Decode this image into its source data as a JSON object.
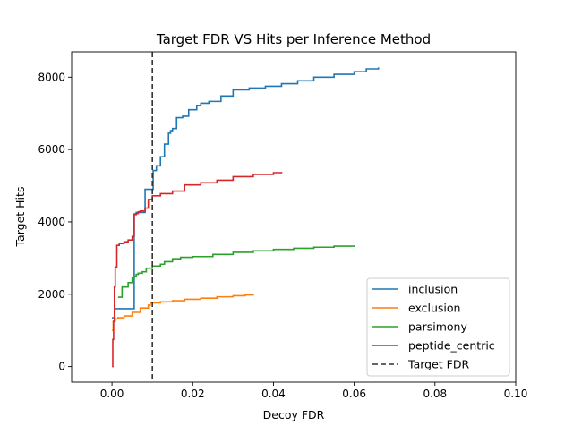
{
  "chart_data": {
    "type": "line",
    "title": "Target FDR VS Hits per Inference Method",
    "xlabel": "Decoy FDR",
    "ylabel": "Target Hits",
    "xlim": [
      -0.01,
      0.1
    ],
    "ylim": [
      -430,
      8700
    ],
    "xticks": [
      0.0,
      0.02,
      0.04,
      0.06,
      0.08,
      0.1
    ],
    "xtick_labels": [
      "0.00",
      "0.02",
      "0.04",
      "0.06",
      "0.08",
      "0.10"
    ],
    "yticks": [
      0,
      2000,
      4000,
      6000,
      8000
    ],
    "ytick_labels": [
      "0",
      "2000",
      "4000",
      "6000",
      "8000"
    ],
    "grid": false,
    "legend_position": "lower-right",
    "series": [
      {
        "name": "inclusion",
        "color": "#1f77b4",
        "step": true,
        "x": [
          0.0,
          0.0007,
          0.0007,
          0.0055,
          0.0055,
          0.006,
          0.006,
          0.0082,
          0.0082,
          0.0102,
          0.0102,
          0.011,
          0.012,
          0.013,
          0.014,
          0.0145,
          0.015,
          0.016,
          0.0175,
          0.019,
          0.021,
          0.022,
          0.024,
          0.027,
          0.03,
          0.034,
          0.038,
          0.042,
          0.046,
          0.05,
          0.055,
          0.06,
          0.063,
          0.066
        ],
        "y": [
          1350,
          1350,
          1600,
          1600,
          4220,
          4220,
          4260,
          4260,
          4900,
          4900,
          5420,
          5550,
          5800,
          6150,
          6450,
          6520,
          6580,
          6880,
          6920,
          7100,
          7220,
          7280,
          7330,
          7480,
          7650,
          7700,
          7750,
          7820,
          7900,
          8000,
          8080,
          8150,
          8230,
          8270
        ]
      },
      {
        "name": "exclusion",
        "color": "#ff7f0e",
        "step": true,
        "x": [
          0.0,
          0.0003,
          0.0008,
          0.0015,
          0.003,
          0.005,
          0.007,
          0.009,
          0.0095,
          0.012,
          0.015,
          0.018,
          0.022,
          0.026,
          0.03,
          0.033,
          0.035
        ],
        "y": [
          1000,
          1250,
          1320,
          1350,
          1400,
          1500,
          1620,
          1700,
          1760,
          1790,
          1820,
          1860,
          1890,
          1930,
          1960,
          1980,
          2000
        ]
      },
      {
        "name": "parsimony",
        "color": "#2ca02c",
        "step": true,
        "x": [
          0.0015,
          0.0025,
          0.004,
          0.005,
          0.0055,
          0.006,
          0.0065,
          0.0075,
          0.0085,
          0.01,
          0.012,
          0.013,
          0.015,
          0.017,
          0.02,
          0.025,
          0.03,
          0.035,
          0.04,
          0.045,
          0.05,
          0.055,
          0.06
        ],
        "y": [
          1920,
          2200,
          2320,
          2450,
          2500,
          2550,
          2580,
          2620,
          2720,
          2780,
          2830,
          2900,
          2980,
          3020,
          3040,
          3100,
          3160,
          3200,
          3240,
          3270,
          3300,
          3330,
          3350
        ]
      },
      {
        "name": "peptide_centric",
        "color": "#d62728",
        "step": true,
        "x": [
          0.0,
          0.0002,
          0.0004,
          0.0006,
          0.0008,
          0.0012,
          0.0018,
          0.003,
          0.004,
          0.005,
          0.0055,
          0.006,
          0.0065,
          0.007,
          0.0082,
          0.009,
          0.01,
          0.012,
          0.015,
          0.018,
          0.022,
          0.026,
          0.03,
          0.035,
          0.04,
          0.042
        ],
        "y": [
          0,
          750,
          1250,
          2200,
          2750,
          3350,
          3400,
          3450,
          3500,
          3600,
          4200,
          4230,
          4280,
          4300,
          4380,
          4620,
          4720,
          4780,
          4850,
          5020,
          5080,
          5150,
          5250,
          5310,
          5360,
          5380
        ]
      }
    ],
    "reference_lines": [
      {
        "name": "Target FDR",
        "color": "#333333",
        "style": "dashed",
        "x": 0.01
      }
    ]
  }
}
